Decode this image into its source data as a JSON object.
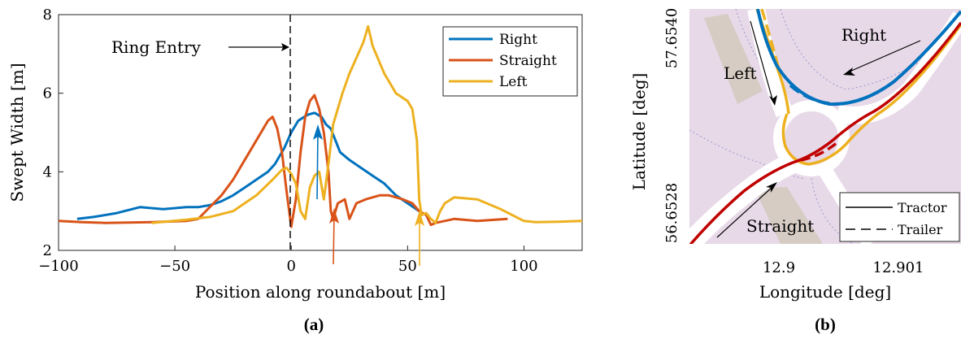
{
  "chart_data": [
    {
      "type": "line",
      "xlabel": "Position along roundabout [m]",
      "ylabel": "Swept Width [m]",
      "xlim": [
        -100,
        125
      ],
      "ylim": [
        2,
        8
      ],
      "xticks": [
        -100,
        -50,
        0,
        50,
        100
      ],
      "yticks": [
        2,
        4,
        6,
        8
      ],
      "grid": false,
      "legend_position": "top-right",
      "panel_label": "(a)",
      "annotation": {
        "text": "Ring Entry",
        "x": 0
      },
      "series": [
        {
          "name": "Right",
          "color": "#0072BD",
          "points": [
            [
              -92,
              2.8
            ],
            [
              -85,
              2.85
            ],
            [
              -75,
              2.95
            ],
            [
              -65,
              3.1
            ],
            [
              -55,
              3.05
            ],
            [
              -45,
              3.1
            ],
            [
              -40,
              3.1
            ],
            [
              -35,
              3.15
            ],
            [
              -30,
              3.25
            ],
            [
              -25,
              3.4
            ],
            [
              -20,
              3.6
            ],
            [
              -15,
              3.8
            ],
            [
              -10,
              4.0
            ],
            [
              -7,
              4.2
            ],
            [
              -5,
              4.4
            ],
            [
              -3,
              4.6
            ],
            [
              0,
              5.0
            ],
            [
              3,
              5.3
            ],
            [
              7,
              5.45
            ],
            [
              10,
              5.5
            ],
            [
              13,
              5.4
            ],
            [
              15,
              5.2
            ],
            [
              17,
              5.1
            ],
            [
              19,
              4.8
            ],
            [
              21,
              4.5
            ],
            [
              25,
              4.3
            ],
            [
              30,
              4.1
            ],
            [
              35,
              3.9
            ],
            [
              40,
              3.7
            ],
            [
              45,
              3.4
            ],
            [
              50,
              3.2
            ],
            [
              55,
              3.0
            ]
          ]
        },
        {
          "name": "Straight",
          "color": "#D95319",
          "points": [
            [
              -100,
              2.75
            ],
            [
              -90,
              2.72
            ],
            [
              -80,
              2.7
            ],
            [
              -60,
              2.72
            ],
            [
              -45,
              2.75
            ],
            [
              -40,
              2.8
            ],
            [
              -35,
              3.1
            ],
            [
              -30,
              3.4
            ],
            [
              -25,
              3.8
            ],
            [
              -20,
              4.3
            ],
            [
              -15,
              4.8
            ],
            [
              -10,
              5.3
            ],
            [
              -8,
              5.4
            ],
            [
              -6,
              5.1
            ],
            [
              -4,
              4.5
            ],
            [
              -2,
              3.5
            ],
            [
              0,
              2.6
            ],
            [
              2,
              3.3
            ],
            [
              4,
              4.5
            ],
            [
              6,
              5.4
            ],
            [
              8,
              5.8
            ],
            [
              10,
              5.95
            ],
            [
              12,
              5.6
            ],
            [
              14,
              5.0
            ],
            [
              16,
              4.0
            ],
            [
              17,
              3.0
            ],
            [
              18,
              2.8
            ],
            [
              20,
              3.2
            ],
            [
              23,
              3.3
            ],
            [
              25,
              2.8
            ],
            [
              28,
              3.2
            ],
            [
              32,
              3.3
            ],
            [
              38,
              3.4
            ],
            [
              42,
              3.4
            ],
            [
              48,
              3.3
            ],
            [
              52,
              3.2
            ],
            [
              55,
              3.0
            ],
            [
              58,
              2.9
            ],
            [
              60,
              2.65
            ],
            [
              62,
              2.7
            ],
            [
              70,
              2.8
            ],
            [
              80,
              2.75
            ],
            [
              93,
              2.8
            ]
          ]
        },
        {
          "name": "Left",
          "color": "#EDB120",
          "points": [
            [
              -60,
              2.7
            ],
            [
              -45,
              2.78
            ],
            [
              -35,
              2.85
            ],
            [
              -25,
              3.0
            ],
            [
              -15,
              3.4
            ],
            [
              -8,
              3.8
            ],
            [
              -4,
              4.05
            ],
            [
              -2,
              4.1
            ],
            [
              0,
              3.95
            ],
            [
              2,
              3.7
            ],
            [
              4,
              3.0
            ],
            [
              6,
              2.8
            ],
            [
              8,
              3.6
            ],
            [
              10,
              3.9
            ],
            [
              12,
              4.0
            ],
            [
              14,
              3.3
            ],
            [
              16,
              4.2
            ],
            [
              18,
              5.2
            ],
            [
              22,
              6.0
            ],
            [
              25,
              6.5
            ],
            [
              28,
              6.9
            ],
            [
              31,
              7.3
            ],
            [
              33,
              7.7
            ],
            [
              35,
              7.2
            ],
            [
              40,
              6.5
            ],
            [
              45,
              6.0
            ],
            [
              50,
              5.8
            ],
            [
              52,
              5.6
            ],
            [
              54,
              4.8
            ],
            [
              55,
              3.3
            ],
            [
              56,
              2.9
            ],
            [
              58,
              2.95
            ],
            [
              60,
              2.8
            ],
            [
              62,
              2.7
            ],
            [
              64,
              3.0
            ],
            [
              66,
              3.2
            ],
            [
              70,
              3.35
            ],
            [
              80,
              3.3
            ],
            [
              90,
              3.05
            ],
            [
              100,
              2.75
            ],
            [
              105,
              2.72
            ],
            [
              115,
              2.73
            ],
            [
              125,
              2.75
            ]
          ]
        }
      ]
    },
    {
      "type": "line",
      "xlabel": "Longitude [deg]",
      "ylabel": "Latitude [deg]",
      "xticks": [
        "12.9",
        "12.901"
      ],
      "yticks": [
        "56.6528",
        "57.6540"
      ],
      "panel_label": "(b)",
      "legend_position": "bottom-right",
      "legend": [
        {
          "label": "Tractor",
          "style": "solid"
        },
        {
          "label": "Trailer",
          "style": "dashed"
        }
      ],
      "annotations": [
        "Right",
        "Left",
        "Straight"
      ],
      "colors": {
        "map_background": "#E8D9E8",
        "road": "#FFFFFF",
        "building": "#D6CCC4",
        "right": "#0072BD",
        "straight": "#C00000",
        "left": "#EDB120"
      }
    }
  ]
}
